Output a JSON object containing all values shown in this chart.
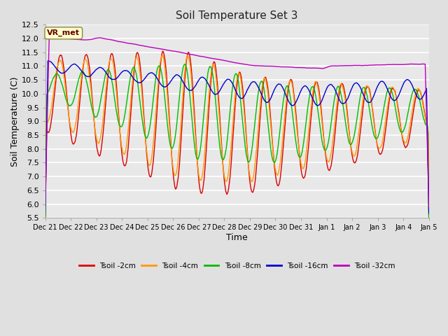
{
  "title": "Soil Temperature Set 3",
  "xlabel": "Time",
  "ylabel": "Soil Temperature (C)",
  "ylim": [
    5.5,
    12.5
  ],
  "yticks": [
    5.5,
    6.0,
    6.5,
    7.0,
    7.5,
    8.0,
    8.5,
    9.0,
    9.5,
    10.0,
    10.5,
    11.0,
    11.5,
    12.0,
    12.5
  ],
  "background_color": "#e0e0e0",
  "plot_background": "#e8e8e8",
  "grid_color": "#ffffff",
  "annotation_label": "VR_met",
  "annotation_bg": "#ffffcc",
  "annotation_border": "#888844",
  "series": [
    {
      "label": "Tsoil -2cm",
      "color": "#dd0000"
    },
    {
      "label": "Tsoil -4cm",
      "color": "#ff9900"
    },
    {
      "label": "Tsoil -8cm",
      "color": "#00bb00"
    },
    {
      "label": "Tsoil -16cm",
      "color": "#0000cc"
    },
    {
      "label": "Tsoil -32cm",
      "color": "#bb00bb"
    }
  ],
  "xtick_labels": [
    "Dec 21",
    "Dec 22",
    "Dec 23",
    "Dec 24",
    "Dec 25",
    "Dec 26",
    "Dec 27",
    "Dec 28",
    "Dec 29",
    "Dec 30",
    "Dec 31",
    "Jan 1",
    "Jan 2",
    "Jan 3",
    "Jan 4",
    "Jan 5"
  ],
  "n_points": 1440
}
